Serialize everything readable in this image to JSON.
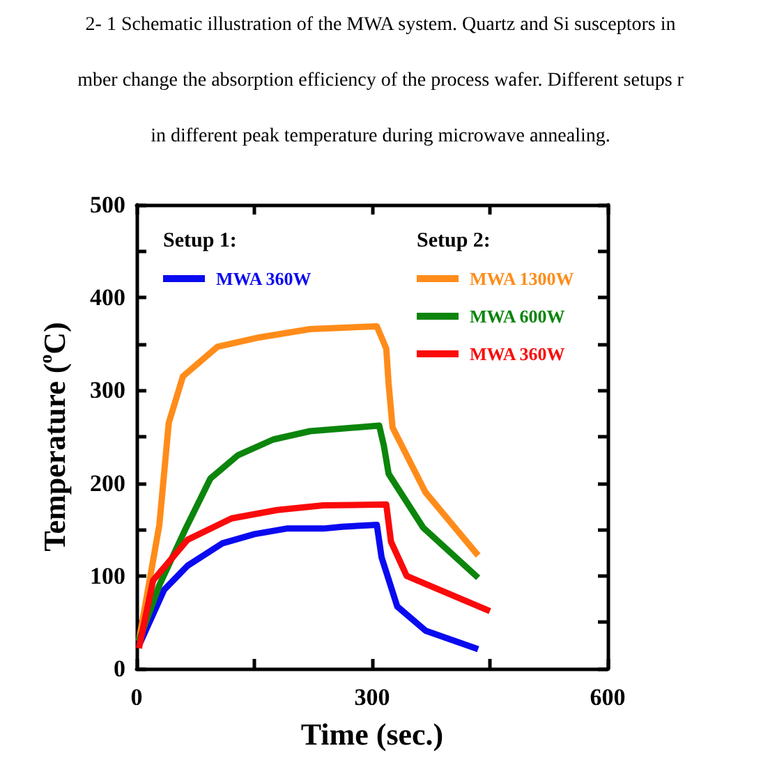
{
  "chart_data": {
    "type": "line",
    "annotations": [
      "2- 1 Schematic illustration of the MWA system. Quartz and Si susceptors in",
      "mber change the absorption efficiency of the process wafer. Different setups r",
      "in different peak temperature during microwave annealing.",
      "Setup 1:",
      "Setup 2:"
    ],
    "xlabel": "Time (sec.)",
    "ylabel": "Temperature ($^{o}$C)",
    "xlim": [
      0,
      600
    ],
    "xticks": [
      0,
      {
        "value": 150,
        "label": null
      },
      300,
      {
        "value": 450,
        "label": null
      },
      600
    ],
    "ylim": [
      0,
      500
    ],
    "yticks": [
      0,
      {
        "value": 50,
        "label": null
      },
      100,
      {
        "value": 150,
        "label": null
      },
      200,
      {
        "value": 250,
        "label": null
      },
      300,
      {
        "value": 350,
        "label": null
      },
      400,
      {
        "value": 450,
        "label": null
      },
      500
    ],
    "legend": "top",
    "marker": "none",
    "line_style": "solid",
    "series": [
      {
        "name": "MWA 360W",
        "color": "#0a0af0",
        "x": [
          3,
          35,
          65,
          109,
          150,
          191,
          238,
          262,
          306,
          312,
          332,
          368,
          435
        ],
        "values": [
          25,
          85,
          111,
          135,
          145,
          151,
          151,
          153,
          155,
          120,
          67,
          41,
          21
        ]
      },
      {
        "name": "MWA 1300W",
        "color": "#ff8c1a",
        "x": [
          3,
          29,
          41,
          59,
          103,
          156,
          221,
          306,
          318,
          321,
          326,
          368,
          435
        ],
        "values": [
          30,
          155,
          265,
          315,
          347,
          357,
          366,
          369,
          345,
          307,
          260,
          190,
          122
        ]
      },
      {
        "name": "MWA 600W",
        "color": "#0c850c",
        "x": [
          3,
          29,
          62,
          94,
          129,
          174,
          221,
          309,
          315,
          321,
          365,
          435
        ],
        "values": [
          30,
          90,
          150,
          205,
          230,
          247,
          256,
          262,
          240,
          210,
          152,
          98
        ]
      },
      {
        "name": "MWA 360W",
        "color": "#fa0a0a",
        "x": [
          3,
          21,
          65,
          121,
          179,
          238,
          318,
          324,
          344,
          450
        ],
        "values": [
          22,
          95,
          139,
          162,
          171,
          176,
          177,
          137,
          100,
          62
        ]
      }
    ]
  }
}
